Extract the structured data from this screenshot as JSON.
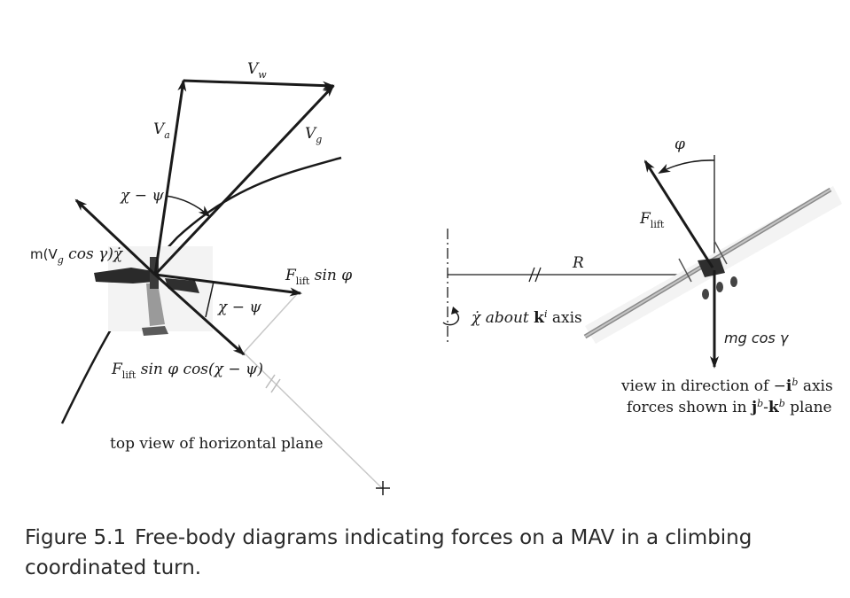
{
  "left_diagram": {
    "labels": {
      "wind_velocity": "V",
      "wind_velocity_sub": "w",
      "airspeed": "V",
      "airspeed_sub": "a",
      "groundspeed": "V",
      "groundspeed_sub": "g",
      "angle_chi_minus_psi_top": "χ − ψ",
      "centripetal_term": "m(V",
      "centripetal_term_sub": "g",
      "centripetal_term_rest": " cos γ)χ̇",
      "lift_sin_phi": "F",
      "lift_sin_phi_sub": "lift",
      "lift_sin_phi_rest": " sin φ",
      "angle_chi_minus_psi_bottom": "χ − ψ",
      "lift_sin_phi_cos": "F",
      "lift_sin_phi_cos_sub": "lift",
      "lift_sin_phi_cos_rest": " sin φ cos(χ − ψ)",
      "caption": "top view of horizontal plane"
    }
  },
  "right_diagram": {
    "labels": {
      "bank_angle": "φ",
      "lift": "F",
      "lift_sub": "lift",
      "radius": "R",
      "rotation_rate": "χ̇ about ",
      "rotation_rate_axis": "k",
      "rotation_rate_axis_sup": "i",
      "rotation_rate_rest": " axis",
      "weight_term": "mg cos γ",
      "view_line1_a": "view in direction of −",
      "view_line1_b": "i",
      "view_line1_sup": "b",
      "view_line1_c": " axis",
      "view_line2_a": "forces shown in ",
      "view_line2_b": "j",
      "view_line2_sup1": "b",
      "view_line2_c": "-",
      "view_line2_d": "k",
      "view_line2_sup2": "b",
      "view_line2_e": " plane"
    }
  },
  "caption": {
    "number": "Figure 5.1",
    "text": "Free-body diagrams indicating forces on a MAV in a climbing coordinated turn."
  }
}
